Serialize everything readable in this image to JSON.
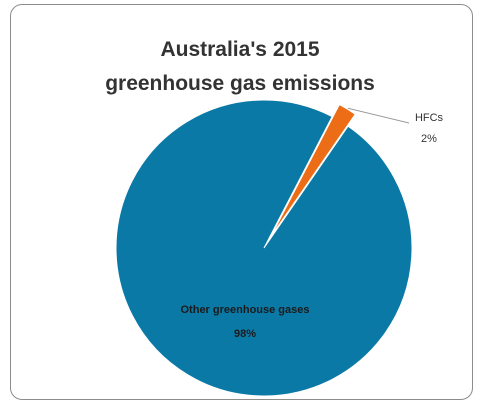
{
  "chart_data": {
    "type": "pie",
    "title_lines": [
      "Australia's 2015",
      "greenhouse gas emissions"
    ],
    "slices": [
      {
        "name": "Other greenhouse gases",
        "value": 98,
        "label": "98%",
        "color": "#0b79a6"
      },
      {
        "name": "HFCs",
        "value": 2,
        "label": "2%",
        "color": "#ec6d16"
      }
    ],
    "legend": "none",
    "border_color": "#8c8c8c"
  }
}
